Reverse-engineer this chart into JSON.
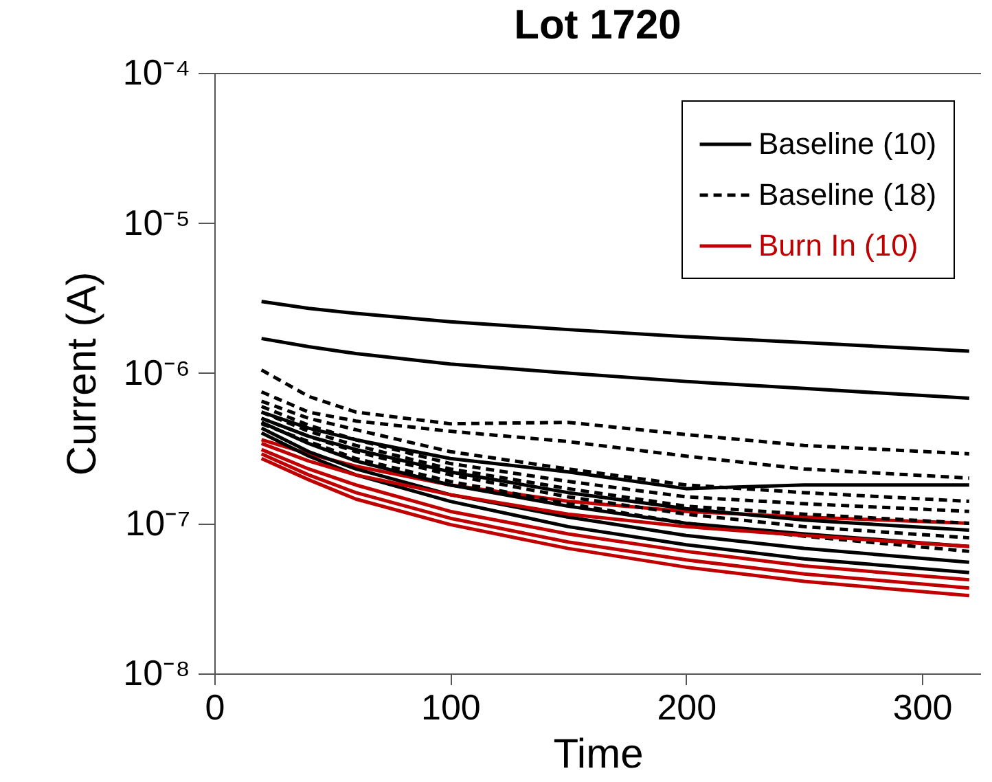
{
  "chart_data": {
    "type": "line",
    "title": "Lot 1720",
    "xlabel": "Time",
    "ylabel": "Current (A)",
    "x": [
      20,
      40,
      60,
      100,
      150,
      200,
      250,
      320
    ],
    "xlim": [
      0,
      325
    ],
    "xticks": [
      0,
      100,
      200,
      300
    ],
    "ylim": [
      1e-08,
      0.0001
    ],
    "yticks": [
      {
        "value": 1e-08,
        "label": "10⁻⁸"
      },
      {
        "value": 1e-07,
        "label": "10⁻⁷"
      },
      {
        "value": 1e-06,
        "label": "10⁻⁶"
      },
      {
        "value": 1e-05,
        "label": "10⁻⁵"
      },
      {
        "value": 0.0001,
        "label": "10⁻⁴"
      }
    ],
    "log": "y",
    "legend": "top right",
    "grid": false,
    "series": [
      {
        "name": "Baseline (10)",
        "color": "#000000",
        "line_style": "solid",
        "values": [
          3e-06,
          2.7e-06,
          2.5e-06,
          2.2e-06,
          1.95e-06,
          1.75e-06,
          1.6e-06,
          1.4e-06
        ]
      },
      {
        "name": "Baseline (18)",
        "color": "#000000",
        "line_style": "dashed",
        "values": [
          1.05e-06,
          7e-07,
          5.5e-07,
          4.6e-07,
          4.7e-07,
          3.9e-07,
          3.3e-07,
          2.9e-07
        ]
      },
      {
        "name": "Burn In (10)",
        "color": "#c00000",
        "line_style": "solid",
        "values": [
          3.6e-07,
          2.9e-07,
          2.4e-07,
          1.8e-07,
          1.4e-07,
          1.2e-07,
          1.1e-07,
          1e-07
        ]
      },
      {
        "color": "#000000",
        "line_style": "solid",
        "values": [
          1.7e-06,
          1.5e-06,
          1.35e-06,
          1.15e-06,
          1e-06,
          8.8e-07,
          7.9e-07,
          6.8e-07
        ]
      },
      {
        "color": "#000000",
        "line_style": "solid",
        "values": [
          5.5e-07,
          4.3e-07,
          3.6e-07,
          2.7e-07,
          2.2e-07,
          1.7e-07,
          1.8e-07,
          1.8e-07
        ]
      },
      {
        "color": "#000000",
        "line_style": "solid",
        "values": [
          5e-07,
          3.8e-07,
          3.1e-07,
          2.2e-07,
          1.6e-07,
          1.25e-07,
          1.05e-07,
          9e-08
        ]
      },
      {
        "color": "#000000",
        "line_style": "solid",
        "values": [
          4.7e-07,
          3.4e-07,
          2.6e-07,
          1.8e-07,
          1.3e-07,
          1e-07,
          8.5e-08,
          7e-08
        ]
      },
      {
        "color": "#000000",
        "line_style": "solid",
        "values": [
          4.3e-07,
          3e-07,
          2.3e-07,
          1.55e-07,
          1.1e-07,
          8.3e-08,
          6.8e-08,
          5.5e-08
        ]
      },
      {
        "color": "#000000",
        "line_style": "solid",
        "values": [
          4e-07,
          2.8e-07,
          2.1e-07,
          1.4e-07,
          9.5e-08,
          7.2e-08,
          5.8e-08,
          4.7e-08
        ]
      },
      {
        "color": "#000000",
        "line_style": "dashed",
        "values": [
          7.5e-07,
          5.5e-07,
          4.8e-07,
          4.1e-07,
          3.5e-07,
          2.8e-07,
          2.3e-07,
          2e-07
        ]
      },
      {
        "color": "#000000",
        "line_style": "dashed",
        "values": [
          6.5e-07,
          5e-07,
          4.2e-07,
          3e-07,
          2.3e-07,
          1.8e-07,
          1.6e-07,
          1.4e-07
        ]
      },
      {
        "color": "#000000",
        "line_style": "dashed",
        "values": [
          6e-07,
          4.5e-07,
          3.6e-07,
          2.5e-07,
          1.9e-07,
          1.5e-07,
          1.35e-07,
          1.2e-07
        ]
      },
      {
        "color": "#000000",
        "line_style": "dashed",
        "values": [
          5.5e-07,
          4.1e-07,
          3.3e-07,
          2.3e-07,
          1.7e-07,
          1.3e-07,
          1.15e-07,
          1e-07
        ]
      },
      {
        "color": "#000000",
        "line_style": "dashed",
        "values": [
          5e-07,
          3.8e-07,
          3e-07,
          2.1e-07,
          1.5e-07,
          1.15e-07,
          9.5e-08,
          8e-08
        ]
      },
      {
        "color": "#000000",
        "line_style": "dashed",
        "values": [
          4.6e-07,
          3.5e-07,
          2.7e-07,
          1.9e-07,
          1.35e-07,
          1e-07,
          8.2e-08,
          6.5e-08
        ]
      },
      {
        "color": "#c00000",
        "line_style": "solid",
        "values": [
          3.4e-07,
          2.6e-07,
          2.1e-07,
          1.55e-07,
          1.15e-07,
          9.5e-08,
          8.3e-08,
          7e-08
        ]
      },
      {
        "color": "#c00000",
        "line_style": "solid",
        "values": [
          3.1e-07,
          2.3e-07,
          1.8e-07,
          1.2e-07,
          8.5e-08,
          6.5e-08,
          5.2e-08,
          4.2e-08
        ]
      },
      {
        "color": "#c00000",
        "line_style": "solid",
        "values": [
          2.9e-07,
          2.1e-07,
          1.6e-07,
          1.08e-07,
          7.5e-08,
          5.7e-08,
          4.6e-08,
          3.7e-08
        ]
      },
      {
        "color": "#c00000",
        "line_style": "solid",
        "values": [
          2.7e-07,
          1.95e-07,
          1.45e-07,
          9.8e-08,
          6.8e-08,
          5.1e-08,
          4.1e-08,
          3.3e-08
        ]
      }
    ]
  }
}
